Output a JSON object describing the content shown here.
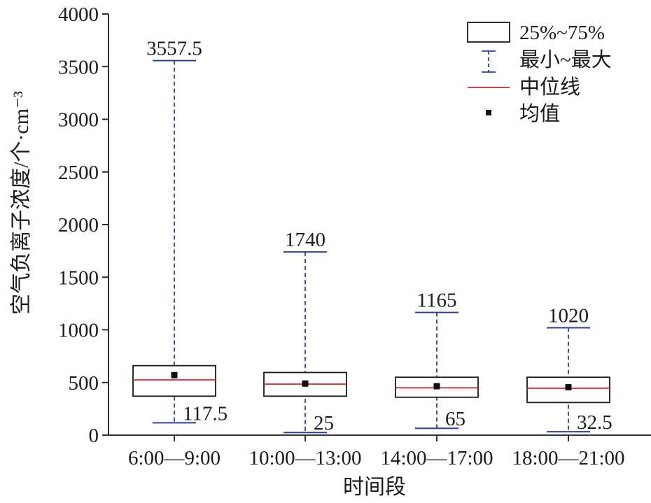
{
  "chart_data": {
    "type": "box",
    "xlabel": "时间段",
    "ylabel": "空气负离子浓度/个·cm⁻³",
    "ylim": [
      0,
      4000
    ],
    "yticks": [
      0,
      500,
      1000,
      1500,
      2000,
      2500,
      3000,
      3500,
      4000
    ],
    "categories": [
      "6:00—9:00",
      "10:00—13:00",
      "14:00—17:00",
      "18:00—21:00"
    ],
    "boxes": [
      {
        "min": 117.5,
        "q1": 370,
        "median": 525,
        "q3": 660,
        "max": 3557.5,
        "mean": 570,
        "min_label": "117.5",
        "max_label": "3557.5"
      },
      {
        "min": 25,
        "q1": 370,
        "median": 485,
        "q3": 595,
        "max": 1740,
        "mean": 490,
        "min_label": "25",
        "max_label": "1740"
      },
      {
        "min": 65,
        "q1": 360,
        "median": 450,
        "q3": 550,
        "max": 1165,
        "mean": 465,
        "min_label": "65",
        "max_label": "1165"
      },
      {
        "min": 32.5,
        "q1": 310,
        "median": 445,
        "q3": 550,
        "max": 1020,
        "mean": 455,
        "min_label": "32.5",
        "max_label": "1020"
      }
    ],
    "legend": {
      "position": "top-right",
      "items": [
        {
          "key": "box",
          "label": "25%~75%"
        },
        {
          "key": "whisker",
          "label": "最小~最大"
        },
        {
          "key": "median",
          "label": "中位线"
        },
        {
          "key": "mean",
          "label": "均值"
        }
      ]
    },
    "colors": {
      "axis": "#1a1a1a",
      "whisker": "#2b3fa0",
      "median": "#d62828",
      "box": "#1a1a1a",
      "mean": "#111111"
    }
  }
}
